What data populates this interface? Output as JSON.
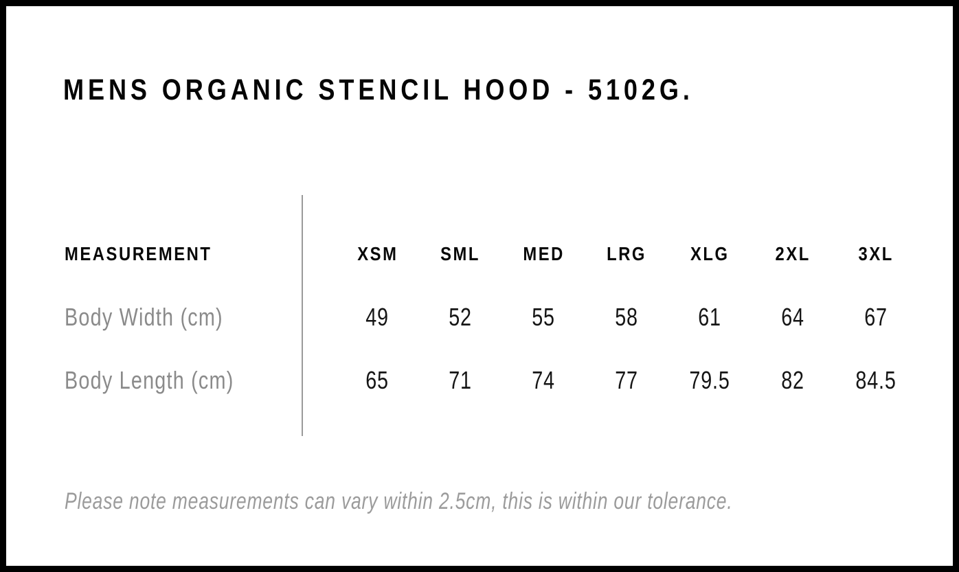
{
  "page": {
    "title": "MENS ORGANIC STENCIL HOOD - 5102G.",
    "note": "Please note measurements can vary within 2.5cm, this is within our tolerance."
  },
  "size_chart": {
    "label_header": "MEASUREMENT",
    "size_headers": [
      "XSM",
      "SML",
      "MED",
      "LRG",
      "XLG",
      "2XL",
      "3XL"
    ],
    "rows": [
      {
        "label": "Body Width (cm)",
        "values": [
          "49",
          "52",
          "55",
          "58",
          "61",
          "64",
          "67"
        ]
      },
      {
        "label": "Body Length (cm)",
        "values": [
          "65",
          "71",
          "74",
          "77",
          "79.5",
          "82",
          "84.5"
        ]
      }
    ]
  },
  "colors": {
    "frame": "#000000",
    "background": "#ffffff",
    "heading_text": "#050505",
    "value_text": "#151515",
    "muted_text": "#8a8a8a",
    "note_text": "#9b9b9b",
    "divider": "#999999"
  }
}
